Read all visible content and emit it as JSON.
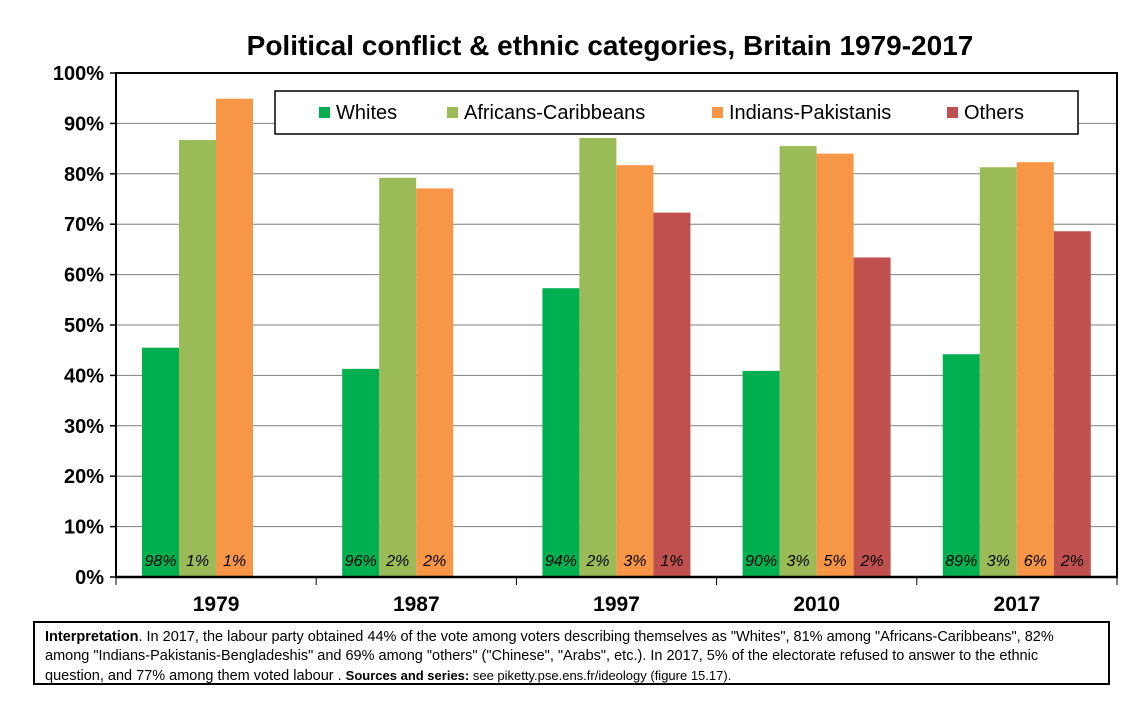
{
  "chart_data": {
    "type": "bar",
    "title": "Political conflict & ethnic categories, Britain 1979-2017",
    "categories": [
      "1979",
      "1987",
      "1997",
      "2010",
      "2017"
    ],
    "ylim": [
      0,
      100
    ],
    "yticks": [
      "0%",
      "10%",
      "20%",
      "30%",
      "40%",
      "50%",
      "60%",
      "70%",
      "80%",
      "90%",
      "100%"
    ],
    "grid": true,
    "legend_position": "top",
    "series": [
      {
        "name": "Whites",
        "color": "#00B050",
        "values": [
          45.5,
          41.3,
          57.3,
          40.9,
          44.2
        ],
        "labels": [
          "98%",
          "96%",
          "94%",
          "90%",
          "89%"
        ]
      },
      {
        "name": "Africans-Caribbeans",
        "color": "#9BBB59",
        "values": [
          86.7,
          79.2,
          87.1,
          85.5,
          81.3
        ],
        "labels": [
          "1%",
          "2%",
          "2%",
          "3%",
          "3%"
        ]
      },
      {
        "name": "Indians-Pakistanis",
        "color": "#F79646",
        "values": [
          94.9,
          77.1,
          81.7,
          84.0,
          82.3
        ],
        "labels": [
          "1%",
          "2%",
          "3%",
          "5%",
          "6%"
        ]
      },
      {
        "name": "Others",
        "color": "#C0504D",
        "values": [
          null,
          null,
          72.3,
          63.4,
          68.6
        ],
        "labels": [
          "",
          "",
          "1%",
          "2%",
          "2%"
        ]
      }
    ]
  },
  "note": {
    "lead": "Interpretation",
    "body": ". In 2017, the labour party obtained 44% of the vote among voters describing themselves as \"Whites\", 81% among \"Africans-Caribbeans\", 82% among \"Indians-Pakistanis-Bengladeshis\" and 69% among \"others\" (\"Chinese\", \"Arabs\", etc.). In 2017, 5% of the electorate refused to answer to the ethnic question, and 77% among them voted labour . ",
    "sources_label": "Sources and series:",
    "sources_text": " see piketty.pse.ens.fr/ideology (figure 15.17)."
  }
}
